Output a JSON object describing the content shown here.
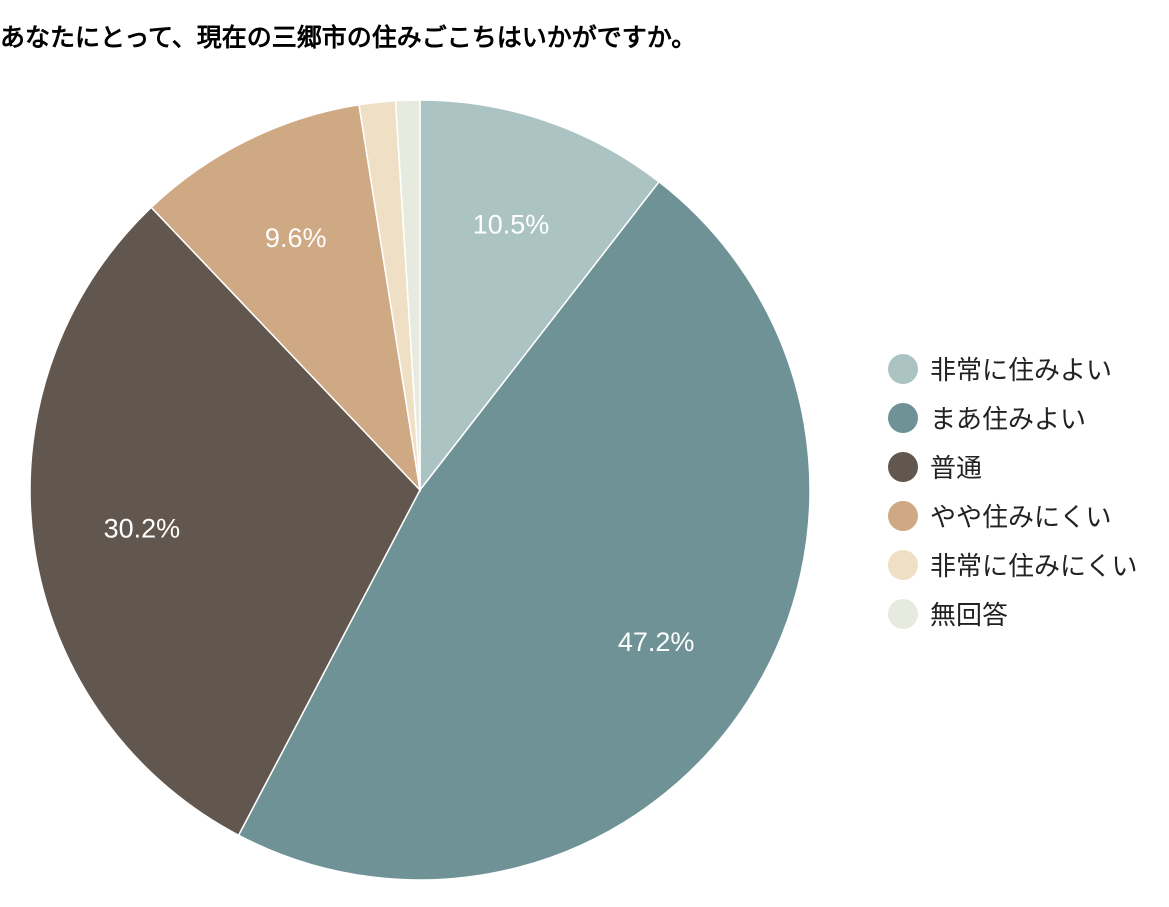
{
  "chart_data": {
    "type": "pie",
    "title": "あなたにとって、現在の三郷市の住みごこちはいかがですか。",
    "categories": [
      "非常に住みよい",
      "まあ住みよい",
      "普通",
      "やや住みにくい",
      "非常に住みにくい",
      "無回答"
    ],
    "values": [
      10.5,
      47.2,
      30.2,
      9.6,
      1.5,
      1.0
    ],
    "data_labels": [
      "10.5%",
      "47.2%",
      "30.2%",
      "9.6%",
      "",
      ""
    ],
    "colors": [
      "#abc3c3",
      "#6f9296",
      "#62574e",
      "#cfa884",
      "#efdfc4",
      "#e7ebdf"
    ],
    "legend_position": "right"
  }
}
